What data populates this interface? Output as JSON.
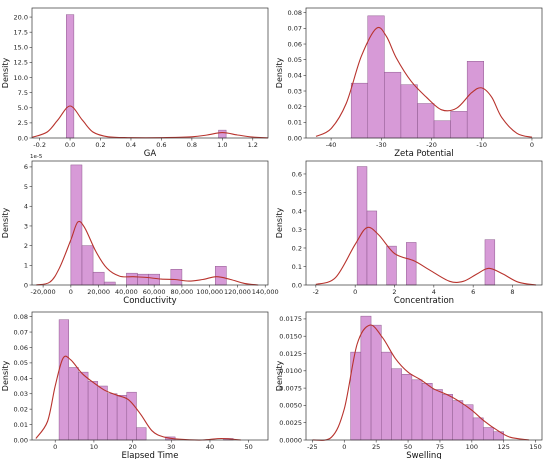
{
  "chart_data": [
    {
      "type": "bar",
      "xlabel": "GA",
      "ylabel": "Density",
      "xlim": [
        -0.25,
        1.3
      ],
      "ylim": [
        0,
        21.5
      ],
      "xticks": [
        -0.2,
        0.0,
        0.2,
        0.4,
        0.6,
        0.8,
        1.0,
        1.2
      ],
      "xtick_labels": [
        "-0.2",
        "0.0",
        "0.2",
        "0.4",
        "0.6",
        "0.8",
        "1.0",
        "1.2"
      ],
      "yticks": [
        0,
        2.5,
        5.0,
        7.5,
        10.0,
        12.5,
        15.0,
        17.5,
        20.0
      ],
      "ytick_labels": [
        "0.0",
        "2.5",
        "5.0",
        "7.5",
        "10.0",
        "12.5",
        "15.0",
        "17.5",
        "20.0"
      ],
      "bins": [
        [
          -0.025,
          0.025,
          20.4
        ],
        [
          0.975,
          1.025,
          1.3
        ]
      ],
      "kde": [
        [
          -0.25,
          0.1
        ],
        [
          -0.15,
          1.0
        ],
        [
          -0.08,
          3.0
        ],
        [
          0.0,
          5.3
        ],
        [
          0.08,
          3.0
        ],
        [
          0.15,
          1.0
        ],
        [
          0.25,
          0.2
        ],
        [
          0.4,
          0.05
        ],
        [
          0.6,
          0.05
        ],
        [
          0.8,
          0.2
        ],
        [
          0.9,
          0.5
        ],
        [
          1.0,
          0.9
        ],
        [
          1.1,
          0.5
        ],
        [
          1.2,
          0.15
        ],
        [
          1.3,
          0.02
        ]
      ]
    },
    {
      "type": "bar",
      "xlabel": "Zeta Potential",
      "ylabel": "Density",
      "xlim": [
        -45,
        2
      ],
      "ylim": [
        0,
        0.083
      ],
      "xticks": [
        -40,
        -30,
        -20,
        -10,
        0
      ],
      "xtick_labels": [
        "-40",
        "-30",
        "-20",
        "-10",
        "0"
      ],
      "yticks": [
        0,
        0.01,
        0.02,
        0.03,
        0.04,
        0.05,
        0.06,
        0.07,
        0.08
      ],
      "ytick_labels": [
        "0.00",
        "0.01",
        "0.02",
        "0.03",
        "0.04",
        "0.05",
        "0.06",
        "0.07",
        "0.08"
      ],
      "bins": [
        [
          -36,
          -32.7,
          0.035
        ],
        [
          -32.7,
          -29.4,
          0.078
        ],
        [
          -29.4,
          -26.1,
          0.042
        ],
        [
          -26.1,
          -22.8,
          0.034
        ],
        [
          -22.8,
          -19.5,
          0.022
        ],
        [
          -19.5,
          -16.2,
          0.011
        ],
        [
          -16.2,
          -12.9,
          0.017
        ],
        [
          -12.9,
          -9.6,
          0.049
        ]
      ],
      "kde": [
        [
          -43,
          0.001
        ],
        [
          -40,
          0.006
        ],
        [
          -37,
          0.022
        ],
        [
          -34,
          0.052
        ],
        [
          -31,
          0.07
        ],
        [
          -29,
          0.065
        ],
        [
          -27,
          0.051
        ],
        [
          -24,
          0.036
        ],
        [
          -21,
          0.026
        ],
        [
          -18,
          0.018
        ],
        [
          -15,
          0.019
        ],
        [
          -12,
          0.029
        ],
        [
          -10,
          0.032
        ],
        [
          -8,
          0.026
        ],
        [
          -6,
          0.013
        ],
        [
          -3,
          0.003
        ],
        [
          0,
          0.0005
        ]
      ]
    },
    {
      "type": "bar",
      "xlabel": "Conductivity",
      "ylabel": "Density",
      "exponent": "1e-5",
      "xlim": [
        -28000,
        142000
      ],
      "ylim": [
        0,
        6.3
      ],
      "xticks": [
        -20000,
        0,
        20000,
        40000,
        60000,
        80000,
        100000,
        120000,
        140000
      ],
      "xtick_labels": [
        "-20,000",
        "0",
        "20,000",
        "40,000",
        "60,000",
        "80,000",
        "100,000",
        "120,000",
        "140,000"
      ],
      "yticks": [
        0,
        1,
        2,
        3,
        4,
        5,
        6
      ],
      "ytick_labels": [
        "0",
        "1",
        "2",
        "3",
        "4",
        "5",
        "6"
      ],
      "bins": [
        [
          0,
          8000,
          6.1
        ],
        [
          8000,
          16000,
          2.0
        ],
        [
          16000,
          24000,
          0.65
        ],
        [
          24000,
          32000,
          0.15
        ],
        [
          32000,
          40000,
          0.0
        ],
        [
          40000,
          48000,
          0.6
        ],
        [
          48000,
          56000,
          0.55
        ],
        [
          56000,
          64000,
          0.55
        ],
        [
          64000,
          72000,
          0.0
        ],
        [
          72000,
          80000,
          0.8
        ],
        [
          80000,
          88000,
          0.0
        ],
        [
          88000,
          96000,
          0.0
        ],
        [
          96000,
          104000,
          0.0
        ],
        [
          104000,
          112000,
          0.95
        ]
      ],
      "kde": [
        [
          -25000,
          0.0
        ],
        [
          -15000,
          0.15
        ],
        [
          -8000,
          0.9
        ],
        [
          0,
          2.3
        ],
        [
          5000,
          3.2
        ],
        [
          10000,
          2.9
        ],
        [
          18000,
          1.7
        ],
        [
          26000,
          0.85
        ],
        [
          35000,
          0.45
        ],
        [
          45000,
          0.42
        ],
        [
          55000,
          0.38
        ],
        [
          65000,
          0.3
        ],
        [
          75000,
          0.28
        ],
        [
          85000,
          0.2
        ],
        [
          95000,
          0.28
        ],
        [
          105000,
          0.42
        ],
        [
          115000,
          0.28
        ],
        [
          125000,
          0.08
        ],
        [
          135000,
          0.0
        ]
      ]
    },
    {
      "type": "bar",
      "xlabel": "Concentration",
      "ylabel": "Density",
      "xlim": [
        -2.5,
        9.5
      ],
      "ylim": [
        0,
        0.67
      ],
      "xticks": [
        -2,
        0,
        2,
        4,
        6,
        8
      ],
      "xtick_labels": [
        "-2",
        "0",
        "2",
        "4",
        "6",
        "8"
      ],
      "yticks": [
        0,
        0.1,
        0.2,
        0.3,
        0.4,
        0.5,
        0.6
      ],
      "ytick_labels": [
        "0.0",
        "0.1",
        "0.2",
        "0.3",
        "0.4",
        "0.5",
        "0.6"
      ],
      "bins": [
        [
          0.1,
          0.6,
          0.64
        ],
        [
          0.6,
          1.1,
          0.4
        ],
        [
          1.1,
          1.6,
          0.0
        ],
        [
          1.6,
          2.1,
          0.21
        ],
        [
          2.1,
          2.6,
          0.0
        ],
        [
          2.6,
          3.1,
          0.23
        ],
        [
          3.1,
          3.6,
          0.0
        ],
        [
          3.6,
          4.1,
          0.0
        ],
        [
          4.1,
          4.6,
          0.0
        ],
        [
          4.6,
          5.1,
          0.0
        ],
        [
          5.1,
          5.6,
          0.0
        ],
        [
          5.6,
          6.1,
          0.0
        ],
        [
          6.1,
          6.6,
          0.0
        ],
        [
          6.6,
          7.1,
          0.245
        ]
      ],
      "kde": [
        [
          -2.0,
          0.003
        ],
        [
          -1.0,
          0.04
        ],
        [
          0.0,
          0.22
        ],
        [
          0.6,
          0.31
        ],
        [
          1.2,
          0.27
        ],
        [
          2.0,
          0.17
        ],
        [
          3.0,
          0.13
        ],
        [
          3.8,
          0.08
        ],
        [
          4.8,
          0.02
        ],
        [
          5.5,
          0.02
        ],
        [
          6.2,
          0.06
        ],
        [
          6.8,
          0.09
        ],
        [
          7.5,
          0.06
        ],
        [
          8.3,
          0.015
        ],
        [
          9.2,
          0.0
        ]
      ]
    },
    {
      "type": "bar",
      "xlabel": "Elapsed Time",
      "ylabel": "Density",
      "xlim": [
        -6,
        55
      ],
      "ylim": [
        0,
        0.083
      ],
      "xticks": [
        0,
        10,
        20,
        30,
        40,
        50
      ],
      "xtick_labels": [
        "0",
        "10",
        "20",
        "30",
        "40",
        "50"
      ],
      "yticks": [
        0,
        0.01,
        0.02,
        0.03,
        0.04,
        0.05,
        0.06,
        0.07,
        0.08
      ],
      "ytick_labels": [
        "0.00",
        "0.01",
        "0.02",
        "0.03",
        "0.04",
        "0.05",
        "0.06",
        "0.07",
        "0.08"
      ],
      "bins": [
        [
          1,
          3.5,
          0.078
        ],
        [
          3.5,
          6,
          0.047
        ],
        [
          6,
          8.5,
          0.044
        ],
        [
          8.5,
          11,
          0.038
        ],
        [
          11,
          13.5,
          0.035
        ],
        [
          13.5,
          16,
          0.03
        ],
        [
          16,
          18.5,
          0.029
        ],
        [
          18.5,
          21,
          0.031
        ],
        [
          21,
          23.5,
          0.008
        ],
        [
          23.5,
          26,
          0.0
        ],
        [
          26,
          28.5,
          0.0
        ],
        [
          28.5,
          31,
          0.002
        ],
        [
          31,
          33.5,
          0.0
        ],
        [
          33.5,
          36,
          0.0
        ],
        [
          36,
          38.5,
          0.0
        ],
        [
          38.5,
          41,
          0.0
        ],
        [
          41,
          43.5,
          0.0
        ],
        [
          43.5,
          46,
          0.001
        ]
      ],
      "kde": [
        [
          -5,
          0.001
        ],
        [
          -2,
          0.012
        ],
        [
          0,
          0.035
        ],
        [
          2,
          0.053
        ],
        [
          4,
          0.052
        ],
        [
          7,
          0.043
        ],
        [
          10,
          0.037
        ],
        [
          13,
          0.032
        ],
        [
          16,
          0.029
        ],
        [
          19,
          0.026
        ],
        [
          22,
          0.017
        ],
        [
          25,
          0.006
        ],
        [
          28,
          0.002
        ],
        [
          32,
          0.0005
        ],
        [
          38,
          0.0
        ],
        [
          43,
          0.001
        ],
        [
          48,
          0.0
        ]
      ]
    },
    {
      "type": "bar",
      "xlabel": "Swelling",
      "ylabel": "Density",
      "xlim": [
        -30,
        155
      ],
      "ylim": [
        0,
        0.0185
      ],
      "xticks": [
        -25,
        0,
        25,
        50,
        75,
        100,
        125,
        150
      ],
      "xtick_labels": [
        "-25",
        "0",
        "25",
        "50",
        "75",
        "100",
        "125",
        "150"
      ],
      "yticks": [
        0,
        0.0025,
        0.005,
        0.0075,
        0.01,
        0.0125,
        0.015,
        0.0175
      ],
      "ytick_labels": [
        "0.0000",
        "0.0025",
        "0.0050",
        "0.0075",
        "0.0100",
        "0.0125",
        "0.0150",
        "0.0175"
      ],
      "bins": [
        [
          5,
          13,
          0.0127
        ],
        [
          13,
          21,
          0.0179
        ],
        [
          21,
          29,
          0.0166
        ],
        [
          29,
          37,
          0.0127
        ],
        [
          37,
          45,
          0.0103
        ],
        [
          45,
          53,
          0.0095
        ],
        [
          53,
          61,
          0.0087
        ],
        [
          61,
          69,
          0.0082
        ],
        [
          69,
          77,
          0.0073
        ],
        [
          77,
          85,
          0.0066
        ],
        [
          85,
          93,
          0.0057
        ],
        [
          93,
          101,
          0.0051
        ],
        [
          101,
          109,
          0.0032
        ],
        [
          109,
          117,
          0.0018
        ],
        [
          117,
          125,
          0.0012
        ]
      ],
      "kde": [
        [
          -25,
          0.0
        ],
        [
          -10,
          0.0004
        ],
        [
          0,
          0.0045
        ],
        [
          10,
          0.0138
        ],
        [
          20,
          0.0166
        ],
        [
          30,
          0.0148
        ],
        [
          40,
          0.0118
        ],
        [
          50,
          0.0098
        ],
        [
          60,
          0.0087
        ],
        [
          70,
          0.0074
        ],
        [
          80,
          0.0066
        ],
        [
          90,
          0.0056
        ],
        [
          100,
          0.0043
        ],
        [
          110,
          0.0027
        ],
        [
          120,
          0.0014
        ],
        [
          130,
          0.0004
        ],
        [
          145,
          0.0
        ]
      ]
    }
  ]
}
